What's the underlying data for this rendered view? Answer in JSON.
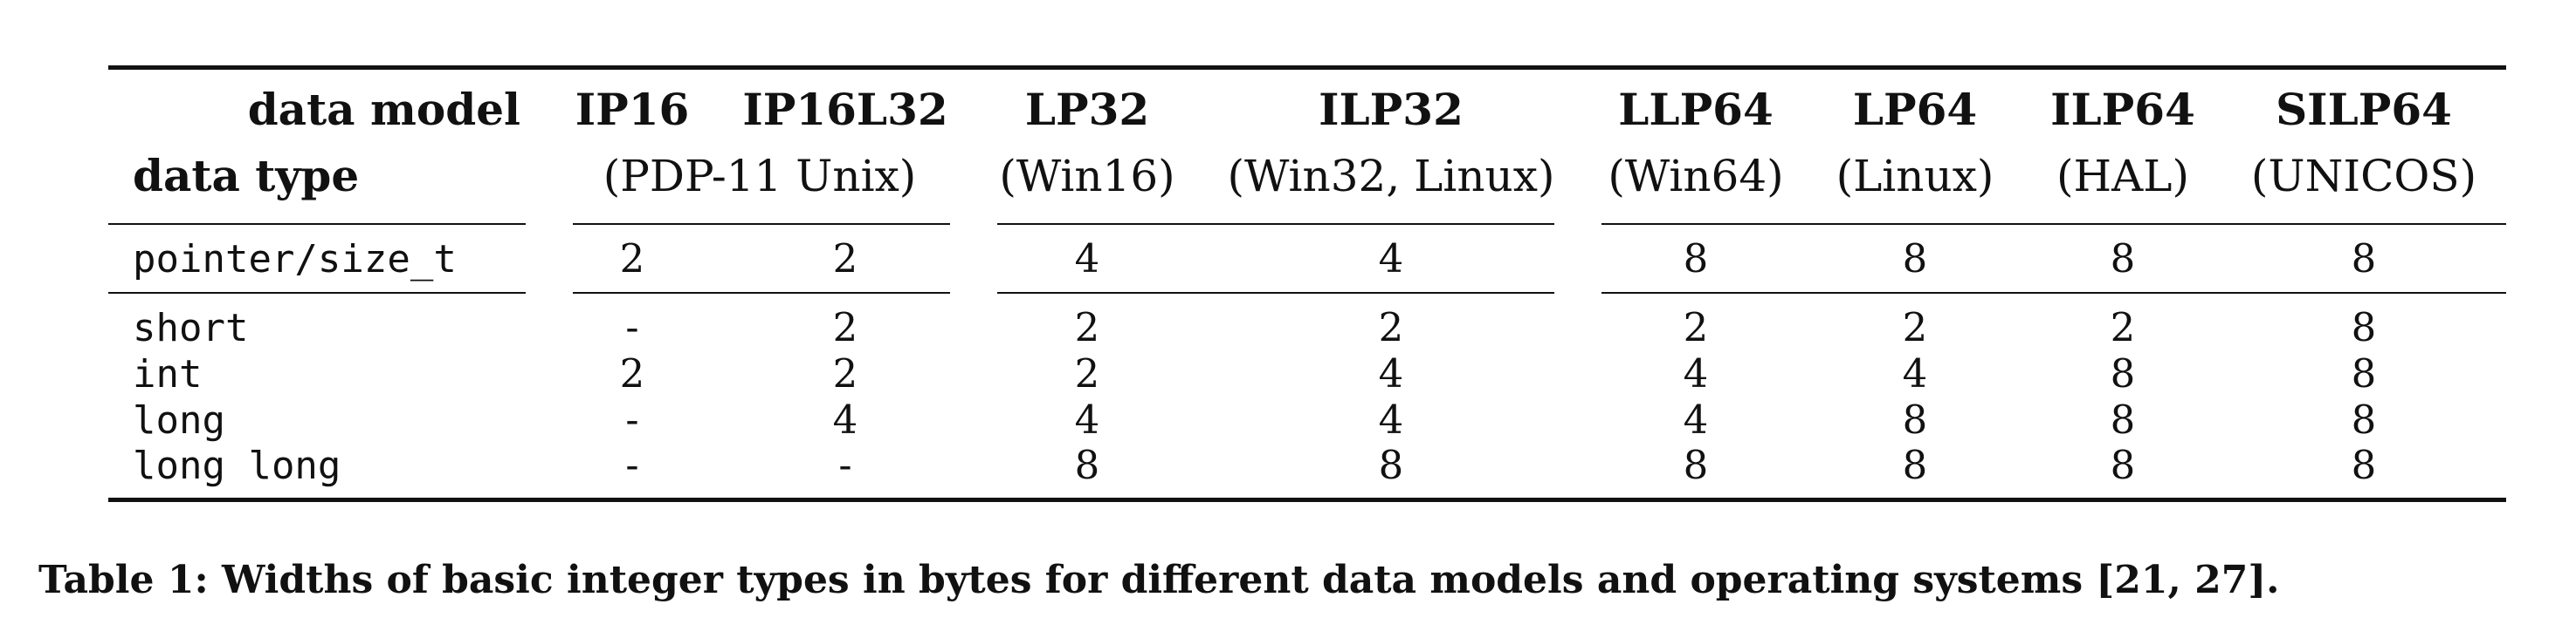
{
  "table": {
    "corner_top": "data model",
    "corner_bottom": "data type",
    "models": [
      "IP16",
      "IP16L32",
      "LP32",
      "ILP32",
      "LLP64",
      "LP64",
      "ILP64",
      "SILP64"
    ],
    "systems": [
      "(PDP-11 Unix)",
      "(Win16)",
      "(Win32, Linux)",
      "(Win64)",
      "(Linux)",
      "(HAL)",
      "(UNICOS)"
    ],
    "rows": [
      {
        "type": "pointer/size_t",
        "values": [
          "2",
          "2",
          "4",
          "4",
          "8",
          "8",
          "8",
          "8"
        ]
      },
      {
        "type": "short",
        "values": [
          "-",
          "2",
          "2",
          "2",
          "2",
          "2",
          "2",
          "8"
        ]
      },
      {
        "type": "int",
        "values": [
          "2",
          "2",
          "2",
          "4",
          "4",
          "4",
          "8",
          "8"
        ]
      },
      {
        "type": "long",
        "values": [
          "-",
          "4",
          "4",
          "4",
          "4",
          "8",
          "8",
          "8"
        ]
      },
      {
        "type": "long long",
        "values": [
          "-",
          "-",
          "8",
          "8",
          "8",
          "8",
          "8",
          "8"
        ]
      }
    ]
  },
  "caption": "Table 1:  Widths of basic integer types in bytes for different data models and operating systems [21, 27]."
}
